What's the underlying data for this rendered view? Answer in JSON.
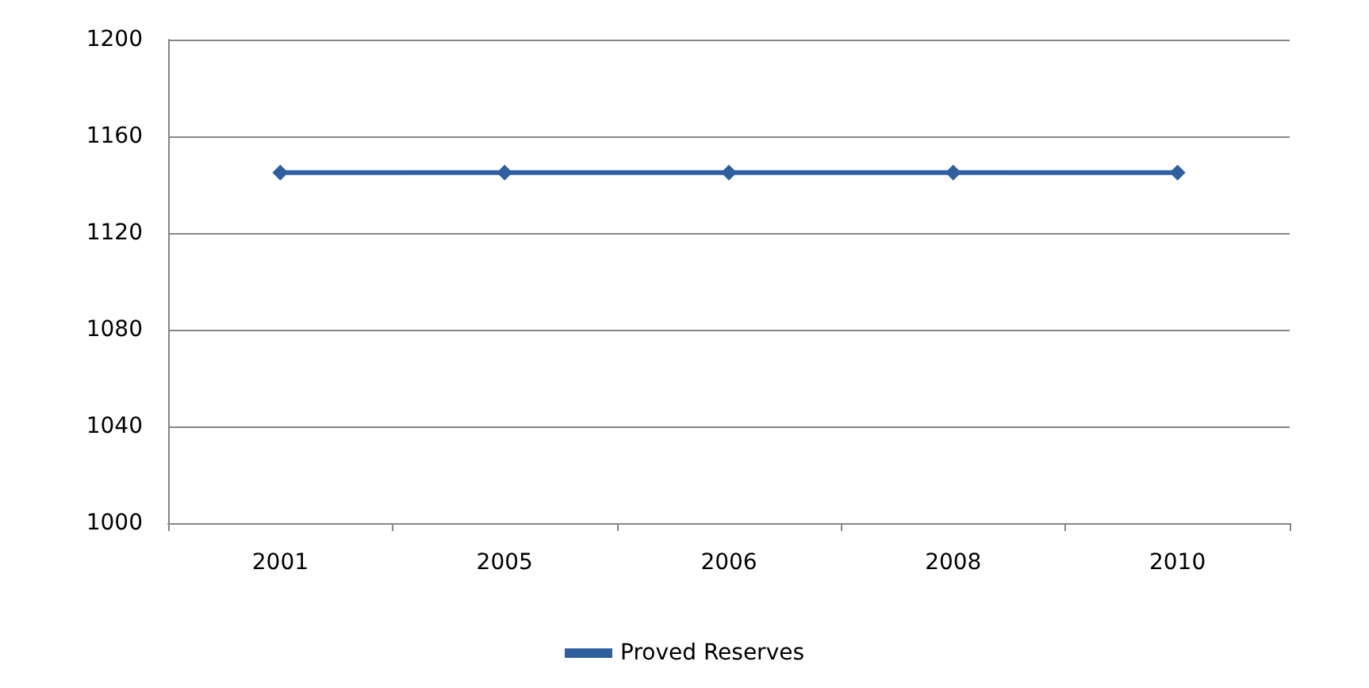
{
  "chart_data": {
    "type": "line",
    "categories": [
      "2001",
      "2005",
      "2006",
      "2008",
      "2010"
    ],
    "series": [
      {
        "name": "Proved Reserves",
        "color": "#2f5f9e",
        "values": [
          1145,
          1145,
          1145,
          1145,
          1145
        ]
      }
    ],
    "ylim": [
      1000,
      1200
    ],
    "yticks": [
      1000,
      1040,
      1080,
      1120,
      1160,
      1200
    ],
    "grid": "y",
    "legend": "bottom",
    "marker": "diamond",
    "line_style": "solid"
  }
}
